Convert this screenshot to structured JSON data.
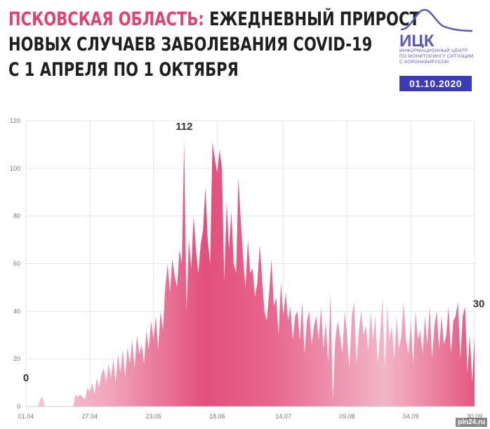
{
  "header": {
    "region": "ПСКОВСКАЯ ОБЛАСТЬ:",
    "line1_rest": "ЕЖЕДНЕВНЫЙ ПРИРОСТ",
    "line2": "НОВЫХ СЛУЧАЕВ ЗАБОЛЕВАНИЯ COVID-19",
    "line3": "С 1 АПРЕЛЯ ПО 1 ОКТЯБРЯ"
  },
  "logo": {
    "name": "ИЦК",
    "text": "ИНФОРМАЦИОННЫЙ ЦЕНТР ПО МОНИТОРИНГУ СИТУАЦИИ С КОРОНАВИРУСОМ",
    "date": "01.10.2020"
  },
  "watermark": "pln24.ru",
  "colors": {
    "accent": "#e0436f",
    "area_dark": "#e0507c",
    "area_light": "#f6c2d2",
    "badge": "#3b3bb5"
  },
  "chart_data": {
    "type": "area",
    "title": "ЕЖЕДНЕВНЫЙ ПРИРОСТ НОВЫХ СЛУЧАЕВ ЗАБОЛЕВАНИЯ COVID-19",
    "xlabel": "",
    "ylabel": "",
    "ylim": [
      0,
      120
    ],
    "yticks": [
      0,
      20,
      40,
      60,
      80,
      100,
      120
    ],
    "xticks": [
      "01.04",
      "27.04",
      "23.05",
      "18.06",
      "14.07",
      "09.08",
      "04.09",
      "30.09"
    ],
    "grid": true,
    "x_start": "01.04",
    "x_end": "30.09",
    "annotations": [
      {
        "label": "0",
        "x": "01.04",
        "y": 0
      },
      {
        "label": "112",
        "x": "30.05",
        "y": 112
      },
      {
        "label": "30",
        "x": "30.09",
        "y": 30
      }
    ],
    "series": [
      {
        "values": [
          0,
          0,
          0,
          0,
          0,
          0,
          3,
          4,
          0,
          0,
          0,
          0,
          0,
          0,
          0,
          0,
          0,
          0,
          0,
          0,
          0,
          5,
          4,
          5,
          4,
          3,
          8,
          6,
          10,
          5,
          12,
          8,
          14,
          16,
          10,
          18,
          12,
          20,
          10,
          22,
          14,
          24,
          12,
          25,
          18,
          28,
          16,
          30,
          22,
          26,
          18,
          32,
          24,
          36,
          28,
          38,
          24,
          40,
          32,
          50,
          60,
          48,
          62,
          55,
          50,
          66,
          60,
          112,
          40,
          70,
          58,
          80,
          66,
          56,
          68,
          74,
          92,
          70,
          60,
          111,
          104,
          98,
          108,
          100,
          52,
          86,
          66,
          82,
          60,
          56,
          96,
          78,
          62,
          50,
          70,
          56,
          58,
          46,
          52,
          68,
          54,
          40,
          36,
          48,
          62,
          42,
          46,
          30,
          52,
          38,
          48,
          36,
          42,
          28,
          38,
          40,
          28,
          44,
          22,
          36,
          40,
          26,
          34,
          38,
          28,
          42,
          24,
          36,
          18,
          48,
          2,
          28,
          36,
          30,
          22,
          40,
          30,
          16,
          38,
          44,
          18,
          32,
          40,
          30,
          34,
          24,
          40,
          28,
          38,
          18,
          30,
          46,
          16,
          42,
          28,
          34,
          20,
          38,
          24,
          30,
          44,
          28,
          22,
          36,
          18,
          40,
          28,
          32,
          22,
          38,
          26,
          42,
          20,
          34,
          40,
          24,
          38,
          26,
          30,
          42,
          22,
          36,
          38,
          44,
          20,
          38,
          42,
          14,
          30,
          10,
          30
        ]
      }
    ]
  }
}
